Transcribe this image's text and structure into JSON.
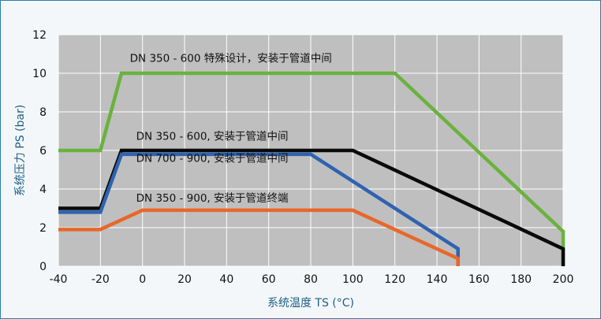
{
  "chart_data": {
    "type": "line",
    "xlabel": "系统温度 TS (°C)",
    "ylabel": "系统压力 PS (bar)",
    "xlim": [
      -40,
      200
    ],
    "ylim": [
      0,
      12
    ],
    "xticks": [
      -40,
      -20,
      0,
      20,
      40,
      60,
      80,
      100,
      120,
      140,
      160,
      180,
      200
    ],
    "yticks": [
      0,
      2,
      4,
      6,
      8,
      10,
      12
    ],
    "grid": true,
    "colors": {
      "plot_bg": "#bfbfbf",
      "grid": "#ffffff",
      "frame": "#2b7fa7",
      "axis_title": "#1f5f86"
    },
    "series": [
      {
        "name": "DN 350 - 600 特殊设计，安装于管道中间",
        "color": "#6ab23e",
        "points": [
          [
            -40,
            6
          ],
          [
            -20,
            6
          ],
          [
            -10,
            10
          ],
          [
            120,
            10
          ],
          [
            200,
            1.8
          ],
          [
            200,
            0
          ]
        ]
      },
      {
        "name": "DN 350 - 600, 安装于管道中间",
        "color": "#0a0a0a",
        "points": [
          [
            -40,
            3
          ],
          [
            -20,
            3
          ],
          [
            -10,
            6
          ],
          [
            100,
            6
          ],
          [
            200,
            0.9
          ],
          [
            200,
            0
          ]
        ]
      },
      {
        "name": "DN 700 - 900, 安装于管道中间",
        "color": "#2e63b0",
        "points": [
          [
            -40,
            2.8
          ],
          [
            -20,
            2.8
          ],
          [
            -10,
            5.8
          ],
          [
            80,
            5.8
          ],
          [
            150,
            0.9
          ],
          [
            150,
            0
          ]
        ]
      },
      {
        "name": "DN 350 - 900, 安装于管道终端",
        "color": "#e8672a",
        "points": [
          [
            -40,
            1.9
          ],
          [
            -20,
            1.9
          ],
          [
            0,
            2.9
          ],
          [
            100,
            2.9
          ],
          [
            150,
            0.4
          ],
          [
            150,
            0
          ]
        ]
      }
    ],
    "annotations": [
      {
        "text": "DN 350 - 600 特殊设计，安装于管道中间",
        "x": -6,
        "y": 10.6
      },
      {
        "text": "DN 350 - 600, 安装于管道中间",
        "x": -3,
        "y": 6.55
      },
      {
        "text": "DN 700 - 900, 安装于管道中间",
        "x": -3,
        "y": 5.4
      },
      {
        "text": "DN 350 - 900, 安装于管道终端",
        "x": -3,
        "y": 3.35
      }
    ]
  }
}
